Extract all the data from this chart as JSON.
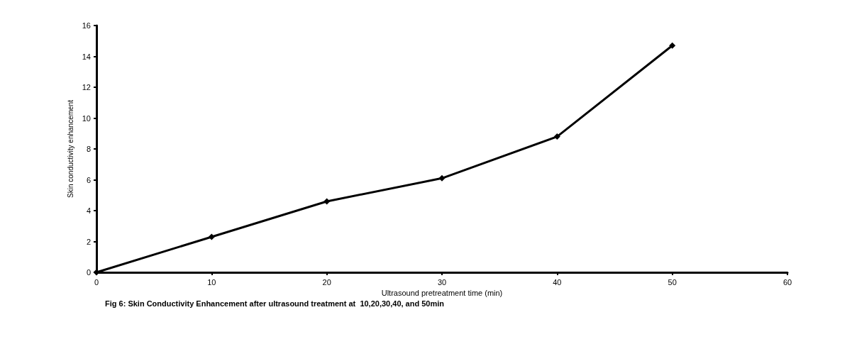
{
  "chart_data": {
    "type": "line",
    "xlabel": "Ultrasound pretreatment time (min)",
    "ylabel": "Skin conductivity enhancement",
    "annotations": [
      "Fig 6: Skin Conductivity Enhancement after ultrasound treatment at  10,20,30,40, and 50min"
    ],
    "x": [
      0,
      10,
      20,
      30,
      40,
      50
    ],
    "series": [
      {
        "color": "#000000",
        "values": [
          0,
          2.3,
          4.6,
          6.1,
          8.8,
          14.7
        ]
      }
    ],
    "xlim": [
      0,
      60
    ],
    "xticks": [
      0,
      10,
      20,
      30,
      40,
      50,
      60
    ],
    "ylim": [
      0,
      16
    ],
    "yticks": [
      0,
      2,
      4,
      6,
      8,
      10,
      12,
      14,
      16
    ],
    "marker": "diamond",
    "line_style": "solid"
  }
}
